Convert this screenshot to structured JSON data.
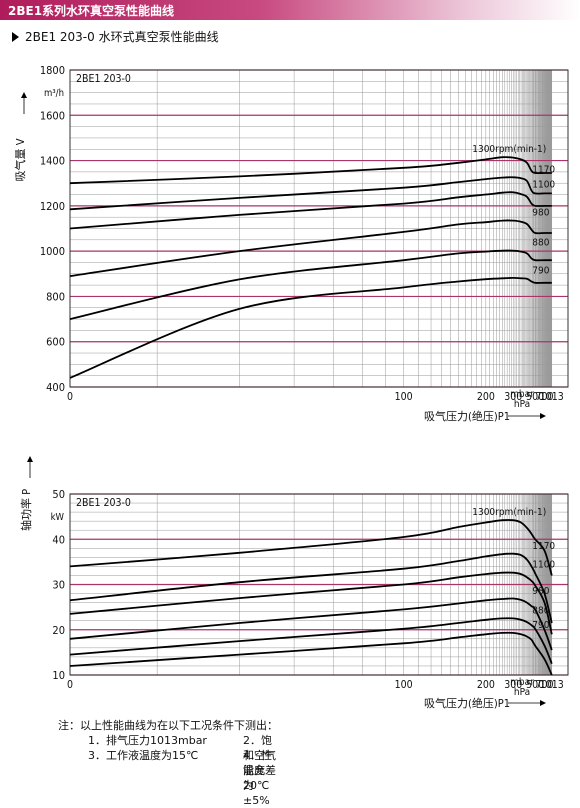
{
  "page": {
    "header": "2BE1系列水环真空泵性能曲线",
    "subtitle": "2BE1 203-0 水环式真空泵性能曲线"
  },
  "colors": {
    "header_bar": "#b01c5b",
    "major_grid": "#a8346a",
    "minor_grid": "#9a9a9a",
    "curve": "#000000"
  },
  "chart_data": [
    {
      "type": "line",
      "model": "2BE1 203-0",
      "ylabel": "吸气量 V",
      "yunit": "m³/h",
      "xlabel": "吸气压力(绝压)P1",
      "xunits": [
        "mbar",
        "hPa"
      ],
      "xscale": "reciprocal",
      "xticks": [
        0,
        100,
        200,
        300,
        500,
        700,
        1013
      ],
      "yticks": [
        400,
        600,
        800,
        1000,
        1200,
        1400,
        1600,
        1800
      ],
      "ylim": [
        400,
        1800
      ],
      "grid": true,
      "series": [
        {
          "name": "1300rpm(min-1)",
          "x": [
            33,
            50,
            100,
            150,
            200,
            250,
            300,
            350,
            400,
            450,
            500,
            700,
            1013
          ],
          "y": [
            1300,
            1330,
            1368,
            1390,
            1405,
            1415,
            1413,
            1405,
            1390,
            1355,
            1345,
            1345,
            1345
          ]
        },
        {
          "name": "1170",
          "x": [
            33,
            50,
            100,
            150,
            200,
            250,
            300,
            350,
            400,
            450,
            500,
            700,
            1013
          ],
          "y": [
            1185,
            1235,
            1280,
            1305,
            1318,
            1325,
            1326,
            1322,
            1310,
            1268,
            1255,
            1255,
            1255
          ]
        },
        {
          "name": "1100",
          "x": [
            33,
            50,
            100,
            150,
            200,
            250,
            300,
            350,
            400,
            450,
            500,
            700,
            1013
          ],
          "y": [
            1100,
            1160,
            1210,
            1238,
            1250,
            1258,
            1260,
            1252,
            1240,
            1210,
            1200,
            1200,
            1200
          ]
        },
        {
          "name": "980",
          "x": [
            33,
            50,
            100,
            150,
            200,
            250,
            300,
            350,
            400,
            450,
            500,
            700,
            1013
          ],
          "y": [
            890,
            1000,
            1085,
            1118,
            1128,
            1135,
            1135,
            1130,
            1120,
            1095,
            1080,
            1080,
            1080
          ]
        },
        {
          "name": "880",
          "x": [
            33,
            50,
            100,
            150,
            200,
            250,
            300,
            350,
            400,
            450,
            500,
            700,
            1013
          ],
          "y": [
            700,
            875,
            960,
            990,
            998,
            1002,
            1002,
            998,
            990,
            968,
            960,
            960,
            960
          ]
        },
        {
          "name": "790",
          "x": [
            33,
            50,
            100,
            150,
            200,
            250,
            300,
            350,
            400,
            450,
            500,
            700,
            1013
          ],
          "y": [
            440,
            745,
            840,
            866,
            876,
            880,
            882,
            880,
            878,
            866,
            860,
            860,
            860
          ]
        }
      ]
    },
    {
      "type": "line",
      "model": "2BE1 203-0",
      "ylabel": "轴功率 P",
      "yunit": "kW",
      "xlabel": "吸气压力(绝压)P1",
      "xunits": [
        "mbar",
        "hPa"
      ],
      "xscale": "reciprocal",
      "xticks": [
        0,
        100,
        200,
        300,
        500,
        700,
        1013
      ],
      "yticks": [
        10,
        20,
        30,
        40,
        50
      ],
      "ylim": [
        10,
        50
      ],
      "grid": true,
      "series": [
        {
          "name": "1300rpm(min-1)",
          "x": [
            33,
            50,
            100,
            150,
            200,
            250,
            300,
            350,
            400,
            450,
            500,
            700,
            1013
          ],
          "y": [
            34,
            37,
            40.5,
            42.7,
            43.7,
            44.2,
            44.2,
            43.7,
            42.5,
            41.2,
            40,
            37.5,
            32
          ]
        },
        {
          "name": "1170",
          "x": [
            33,
            50,
            100,
            150,
            200,
            250,
            300,
            350,
            400,
            450,
            500,
            700,
            1013
          ],
          "y": [
            26.5,
            30.5,
            33.5,
            35.2,
            36.2,
            36.7,
            36.8,
            36.5,
            35.5,
            34,
            32.5,
            28,
            21.5
          ]
        },
        {
          "name": "1100",
          "x": [
            33,
            50,
            100,
            150,
            200,
            250,
            300,
            350,
            400,
            450,
            500,
            700,
            1013
          ],
          "y": [
            23.5,
            27,
            30,
            31.6,
            32.3,
            32.6,
            32.6,
            32.3,
            31.6,
            30.8,
            29.8,
            26,
            19
          ]
        },
        {
          "name": "980",
          "x": [
            33,
            50,
            100,
            150,
            200,
            250,
            300,
            350,
            400,
            450,
            500,
            700,
            1013
          ],
          "y": [
            18,
            21.5,
            24.5,
            25.8,
            26.5,
            26.8,
            26.9,
            26.6,
            26,
            25.2,
            24.5,
            20,
            15.5
          ]
        },
        {
          "name": "880",
          "x": [
            33,
            50,
            100,
            150,
            200,
            250,
            300,
            350,
            400,
            450,
            500,
            700,
            1013
          ],
          "y": [
            14.5,
            17.5,
            20.2,
            21.5,
            22.2,
            22.5,
            22.5,
            22.2,
            21.7,
            21,
            20.2,
            16.5,
            12.5
          ]
        },
        {
          "name": "790",
          "x": [
            33,
            50,
            100,
            150,
            200,
            250,
            300,
            350,
            400,
            450,
            500,
            700,
            1013
          ],
          "y": [
            12,
            14.5,
            17,
            18.3,
            19,
            19.3,
            19.3,
            19,
            18.5,
            17.8,
            16.5,
            13.5,
            10
          ]
        }
      ]
    }
  ],
  "notes": {
    "heading": "注：以上性能曲线为在以下工况条件下测出：",
    "item1": "1．排气压力1013mbar",
    "item2": "2．饱和空气温度20℃",
    "item3": "3．工作液温度为15℃",
    "item4": "4．性能允差为±5%"
  }
}
